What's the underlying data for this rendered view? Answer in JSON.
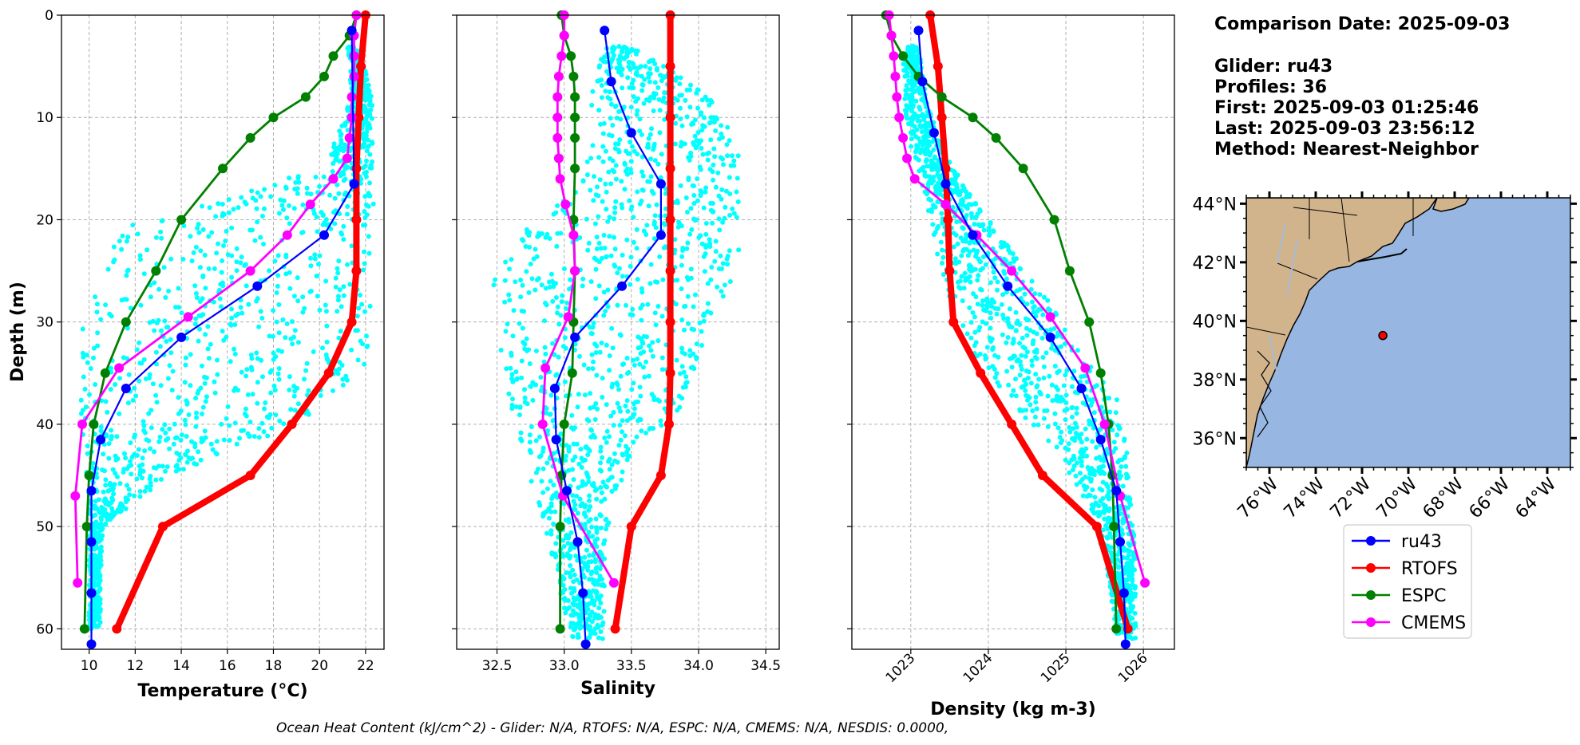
{
  "info": {
    "title": "Comparison Date: 2025-09-03",
    "glider": "Glider: ru43",
    "profiles": "Profiles: 36",
    "first": "First: 2025-09-03 01:25:46",
    "last": "Last: 2025-09-03 23:56:12",
    "method": "Method: Nearest-Neighbor"
  },
  "footer": "Ocean Heat Content (kJ/cm^2) - Glider: N/A,  RTOFS: N/A,  ESPC: N/A,  CMEMS: N/A,  NESDIS: 0.0000,",
  "colors": {
    "glider_scatter": "#00ffff",
    "ru43": "#0000ff",
    "RTOFS": "#ff0000",
    "ESPC": "#008000",
    "CMEMS": "#ff00ff",
    "land": "#d2b48c",
    "ocean": "#97b6e1"
  },
  "legend": {
    "items": [
      {
        "label": "ru43",
        "color": "#0000ff"
      },
      {
        "label": "RTOFS",
        "color": "#ff0000"
      },
      {
        "label": "ESPC",
        "color": "#008000"
      },
      {
        "label": "CMEMS",
        "color": "#ff00ff"
      }
    ]
  },
  "map": {
    "lat_labels": [
      "44°N",
      "42°N",
      "40°N",
      "38°N",
      "36°N"
    ],
    "lon_labels": [
      "76°W",
      "74°W",
      "72°W",
      "70°W",
      "68°W",
      "66°W",
      "64°W"
    ],
    "lat_range": [
      35,
      44.2
    ],
    "lon_range": [
      -77,
      -63
    ],
    "glider_position": {
      "lat": 39.5,
      "lon": -71.1
    }
  },
  "chart_data": [
    {
      "type": "line",
      "id": "temperature",
      "title": "",
      "xlabel": "Temperature (°C)",
      "ylabel": "Depth (m)",
      "xlim": [
        8.8,
        22.8
      ],
      "ylim": [
        62,
        0
      ],
      "xticks": [
        10,
        12,
        14,
        16,
        18,
        20,
        22
      ],
      "yticks": [
        0,
        10,
        20,
        30,
        40,
        50,
        60
      ],
      "scatter_envelope": {
        "depth": [
          3,
          8,
          15,
          20,
          25,
          30,
          35,
          40,
          45,
          50,
          55,
          60
        ],
        "min": [
          21.2,
          21.4,
          20.2,
          12.0,
          10.0,
          9.7,
          9.6,
          9.6,
          9.9,
          10.0,
          10.0,
          10.0
        ],
        "max": [
          21.7,
          22.3,
          22.3,
          22.4,
          22.3,
          22.2,
          22.0,
          19.0,
          13.5,
          10.6,
          10.5,
          10.5
        ]
      },
      "series": [
        {
          "name": "ru43",
          "depth": [
            1.5,
            16.5,
            21.5,
            26.5,
            31.5,
            36.5,
            41.5,
            46.5,
            51.5,
            56.5,
            61.5
          ],
          "values": [
            21.4,
            21.5,
            20.2,
            17.3,
            14.0,
            11.6,
            10.5,
            10.1,
            10.1,
            10.1,
            10.1
          ]
        },
        {
          "name": "RTOFS",
          "depth": [
            0,
            5,
            10,
            15,
            20,
            25,
            30,
            35,
            40,
            45,
            50,
            60
          ],
          "values": [
            22.0,
            21.8,
            21.7,
            21.6,
            21.6,
            21.6,
            21.4,
            20.4,
            18.8,
            17.0,
            13.2,
            11.2
          ]
        },
        {
          "name": "ESPC",
          "depth": [
            0,
            2,
            4,
            6,
            8,
            10,
            12,
            15,
            20,
            25,
            30,
            35,
            40,
            45,
            50,
            60
          ],
          "values": [
            21.6,
            21.3,
            20.6,
            20.2,
            19.4,
            18.0,
            17.0,
            15.8,
            14.0,
            12.9,
            11.6,
            10.7,
            10.2,
            10.0,
            9.9,
            9.8
          ]
        },
        {
          "name": "CMEMS",
          "depth": [
            0,
            2,
            4,
            6,
            8,
            10,
            12,
            14,
            16,
            18.5,
            21.5,
            25,
            29.5,
            34.5,
            40,
            47,
            55.5
          ],
          "values": [
            21.6,
            21.5,
            21.5,
            21.5,
            21.4,
            21.4,
            21.3,
            21.2,
            20.6,
            19.6,
            18.6,
            17.0,
            14.3,
            11.3,
            9.7,
            9.4,
            9.5
          ]
        }
      ]
    },
    {
      "type": "line",
      "id": "salinity",
      "title": "",
      "xlabel": "Salinity",
      "ylabel": "",
      "xlim": [
        32.2,
        34.6
      ],
      "ylim": [
        62,
        0
      ],
      "xticks": [
        32.5,
        33.0,
        33.5,
        34.0,
        34.5
      ],
      "yticks": [
        0,
        10,
        20,
        30,
        40,
        50,
        60
      ],
      "scatter_envelope": {
        "depth": [
          3,
          8,
          13,
          18,
          23,
          28,
          33,
          38,
          43,
          48,
          53,
          58,
          61
        ],
        "min": [
          33.3,
          33.2,
          33.2,
          33.0,
          32.5,
          32.45,
          32.5,
          32.6,
          32.7,
          32.8,
          32.9,
          33.0,
          33.05
        ],
        "max": [
          33.5,
          34.1,
          34.3,
          34.3,
          34.3,
          34.2,
          34.0,
          33.9,
          33.5,
          33.35,
          33.3,
          33.3,
          33.3
        ]
      },
      "series": [
        {
          "name": "ru43",
          "depth": [
            1.5,
            6.5,
            11.5,
            16.5,
            21.5,
            26.5,
            31.5,
            36.5,
            41.5,
            46.5,
            51.5,
            56.5,
            61.5
          ],
          "values": [
            33.3,
            33.35,
            33.5,
            33.72,
            33.72,
            33.43,
            33.08,
            32.93,
            32.94,
            33.02,
            33.1,
            33.14,
            33.16
          ]
        },
        {
          "name": "RTOFS",
          "depth": [
            0,
            5,
            10,
            15,
            20,
            25,
            30,
            35,
            40,
            45,
            50,
            60
          ],
          "values": [
            33.79,
            33.79,
            33.79,
            33.79,
            33.79,
            33.79,
            33.79,
            33.79,
            33.78,
            33.72,
            33.5,
            33.38
          ]
        },
        {
          "name": "ESPC",
          "depth": [
            0,
            2,
            4,
            6,
            8,
            10,
            12,
            15,
            20,
            25,
            30,
            35,
            40,
            45,
            50,
            60
          ],
          "values": [
            32.98,
            33.0,
            33.05,
            33.07,
            33.08,
            33.08,
            33.08,
            33.08,
            33.07,
            33.08,
            33.07,
            33.06,
            33.0,
            32.98,
            32.97,
            32.97
          ]
        },
        {
          "name": "CMEMS",
          "depth": [
            0,
            2,
            4,
            6,
            8,
            10,
            12,
            14,
            16,
            18.5,
            21.5,
            25,
            29.5,
            34.5,
            40,
            47,
            55.5
          ],
          "values": [
            33.0,
            33.0,
            32.98,
            32.96,
            32.95,
            32.95,
            32.95,
            32.96,
            32.97,
            33.01,
            33.07,
            33.08,
            33.03,
            32.86,
            32.84,
            32.99,
            33.37
          ]
        }
      ]
    },
    {
      "type": "line",
      "id": "density",
      "title": "",
      "xlabel": "Density (kg m-3)",
      "ylabel": "",
      "xlim": [
        1022.24,
        1026.4
      ],
      "ylim": [
        62,
        0
      ],
      "xticks": [
        1023,
        1024,
        1025,
        1026
      ],
      "yticks": [
        0,
        10,
        20,
        30,
        40,
        50,
        60
      ],
      "scatter_envelope": {
        "depth": [
          3,
          8,
          13,
          18,
          23,
          28,
          33,
          38,
          43,
          48,
          53,
          58,
          61
        ],
        "min": [
          1022.9,
          1022.9,
          1023.0,
          1023.2,
          1023.3,
          1023.5,
          1023.8,
          1024.3,
          1024.9,
          1025.3,
          1025.5,
          1025.6,
          1025.65
        ],
        "max": [
          1023.1,
          1023.2,
          1023.4,
          1023.8,
          1024.3,
          1024.8,
          1025.2,
          1025.7,
          1025.8,
          1025.85,
          1025.9,
          1025.9,
          1025.9
        ]
      },
      "series": [
        {
          "name": "ru43",
          "depth": [
            1.5,
            6.5,
            11.5,
            16.5,
            21.5,
            26.5,
            31.5,
            36.5,
            41.5,
            46.5,
            51.5,
            56.5,
            61.5
          ],
          "values": [
            1023.1,
            1023.15,
            1023.3,
            1023.45,
            1023.8,
            1024.25,
            1024.8,
            1025.2,
            1025.45,
            1025.65,
            1025.7,
            1025.75,
            1025.77
          ]
        },
        {
          "name": "RTOFS",
          "depth": [
            0,
            5,
            10,
            15,
            20,
            25,
            30,
            35,
            40,
            45,
            50,
            60
          ],
          "values": [
            1023.25,
            1023.35,
            1023.4,
            1023.45,
            1023.48,
            1023.5,
            1023.55,
            1023.9,
            1024.3,
            1024.7,
            1025.4,
            1025.8
          ]
        },
        {
          "name": "ESPC",
          "depth": [
            0,
            2,
            4,
            6,
            8,
            10,
            12,
            15,
            20,
            25,
            30,
            35,
            40,
            45,
            50,
            60
          ],
          "values": [
            1022.68,
            1022.75,
            1022.9,
            1023.1,
            1023.4,
            1023.8,
            1024.1,
            1024.45,
            1024.85,
            1025.05,
            1025.3,
            1025.45,
            1025.55,
            1025.6,
            1025.62,
            1025.65
          ]
        },
        {
          "name": "CMEMS",
          "depth": [
            0,
            2,
            4,
            6,
            8,
            10,
            12,
            14,
            16,
            18.5,
            21.5,
            25,
            29.5,
            34.5,
            40,
            47,
            55.5
          ],
          "values": [
            1022.72,
            1022.75,
            1022.78,
            1022.8,
            1022.82,
            1022.85,
            1022.9,
            1022.95,
            1023.05,
            1023.45,
            1023.85,
            1024.3,
            1024.8,
            1025.25,
            1025.5,
            1025.7,
            1026.02
          ]
        }
      ]
    }
  ]
}
